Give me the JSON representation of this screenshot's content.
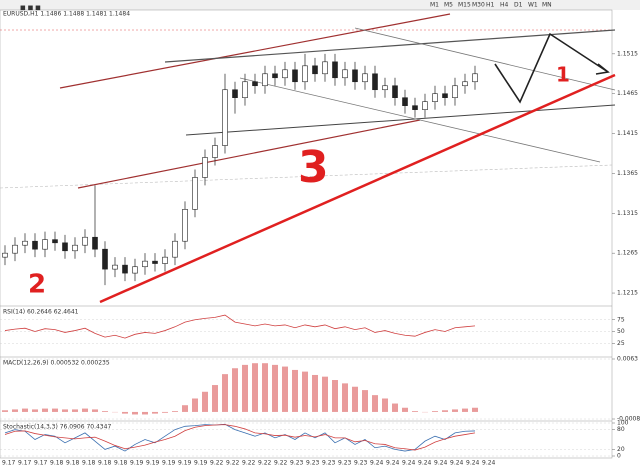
{
  "toolbar": [
    "M1",
    "M5",
    "M15",
    "M30",
    "H1",
    "H4",
    "D1",
    "W1",
    "MN"
  ],
  "annotations": [
    "1",
    "2",
    "3"
  ],
  "time_axis": [
    "9.17",
    "9.17",
    "9.17",
    "9.18",
    "9.18",
    "9.18",
    "9.18",
    "9.18",
    "9.19",
    "9.19",
    "9.19",
    "9.19",
    "9.19",
    "9.22",
    "9.22",
    "9.22",
    "9.22",
    "9.22",
    "9.23",
    "9.23",
    "9.23",
    "9.23",
    "9.23",
    "9.24",
    "9.24",
    "9.24",
    "9.24",
    "9.24",
    "9.24",
    "9.24",
    "9.24"
  ],
  "chart_data": [
    {
      "type": "candlestick",
      "title": "EURUSD,H1 1.1486 1.1488 1.1481 1.1484",
      "color": "#222222",
      "open": [
        1.126,
        1.1265,
        1.1275,
        1.128,
        1.127,
        1.1282,
        1.1278,
        1.1268,
        1.1275,
        1.1285,
        1.127,
        1.1245,
        1.125,
        1.124,
        1.1248,
        1.1255,
        1.1252,
        1.126,
        1.128,
        1.132,
        1.136,
        1.1385,
        1.14,
        1.147,
        1.146,
        1.148,
        1.1475,
        1.149,
        1.1485,
        1.1495,
        1.148,
        1.15,
        1.149,
        1.1505,
        1.1485,
        1.1495,
        1.148,
        1.149,
        1.147,
        1.1475,
        1.146,
        1.145,
        1.1445,
        1.1455,
        1.1465,
        1.146,
        1.1475,
        1.148
      ],
      "high": [
        1.1275,
        1.1285,
        1.129,
        1.129,
        1.1292,
        1.1292,
        1.1288,
        1.1285,
        1.1295,
        1.135,
        1.128,
        1.126,
        1.126,
        1.1258,
        1.1265,
        1.1265,
        1.127,
        1.129,
        1.133,
        1.137,
        1.1395,
        1.141,
        1.149,
        1.148,
        1.149,
        1.149,
        1.15,
        1.15,
        1.1505,
        1.1505,
        1.1515,
        1.151,
        1.1515,
        1.1515,
        1.1505,
        1.1505,
        1.15,
        1.15,
        1.1485,
        1.1485,
        1.147,
        1.146,
        1.1465,
        1.1475,
        1.1475,
        1.1485,
        1.149,
        1.15
      ],
      "low": [
        1.125,
        1.1255,
        1.1265,
        1.126,
        1.126,
        1.1268,
        1.1258,
        1.1258,
        1.1265,
        1.126,
        1.1225,
        1.1235,
        1.123,
        1.123,
        1.1238,
        1.1242,
        1.1242,
        1.125,
        1.127,
        1.131,
        1.135,
        1.1375,
        1.139,
        1.144,
        1.145,
        1.1465,
        1.1465,
        1.1475,
        1.1475,
        1.147,
        1.147,
        1.148,
        1.148,
        1.1475,
        1.1475,
        1.147,
        1.147,
        1.146,
        1.146,
        1.145,
        1.144,
        1.1435,
        1.1435,
        1.1445,
        1.145,
        1.145,
        1.1465,
        1.147
      ],
      "close": [
        1.1265,
        1.1275,
        1.128,
        1.127,
        1.1282,
        1.1278,
        1.1268,
        1.1275,
        1.1285,
        1.127,
        1.1245,
        1.125,
        1.124,
        1.1248,
        1.1255,
        1.1252,
        1.126,
        1.128,
        1.132,
        1.136,
        1.1385,
        1.14,
        1.147,
        1.146,
        1.148,
        1.1475,
        1.149,
        1.1485,
        1.1495,
        1.148,
        1.15,
        1.149,
        1.1505,
        1.1485,
        1.1495,
        1.148,
        1.149,
        1.147,
        1.1475,
        1.146,
        1.145,
        1.1445,
        1.1455,
        1.1465,
        1.146,
        1.1475,
        1.148,
        1.149
      ],
      "ylim": [
        1.12,
        1.157
      ],
      "yticks": [
        1.1215,
        1.1265,
        1.1315,
        1.1365,
        1.1415,
        1.1465,
        1.1515
      ],
      "grid": false
    },
    {
      "type": "line",
      "title": "RSI(14) 60.2646 62.4641",
      "color": "#d04040",
      "values": [
        52,
        55,
        57,
        50,
        56,
        54,
        48,
        52,
        57,
        46,
        38,
        42,
        36,
        44,
        48,
        46,
        52,
        60,
        70,
        75,
        78,
        80,
        85,
        70,
        66,
        62,
        66,
        62,
        64,
        58,
        64,
        60,
        64,
        56,
        60,
        54,
        58,
        48,
        52,
        46,
        42,
        40,
        48,
        54,
        50,
        58,
        60,
        62
      ],
      "ylim": [
        0,
        100
      ],
      "yticks": [
        25,
        50,
        75
      ]
    },
    {
      "type": "bar",
      "title": "MACD(12,26,9) 0.000532 0.000235",
      "color": "#e07070",
      "values": [
        0.0002,
        0.0003,
        0.0004,
        0.0003,
        0.0004,
        0.0004,
        0.0003,
        0.0003,
        0.0004,
        0.0003,
        0.0001,
        0,
        -0.0002,
        -0.0003,
        -0.0003,
        -0.0002,
        -0.0001,
        0.0001,
        0.0008,
        0.0016,
        0.0024,
        0.0032,
        0.0045,
        0.0052,
        0.0056,
        0.0058,
        0.0058,
        0.0056,
        0.0054,
        0.005,
        0.0048,
        0.0044,
        0.0042,
        0.0038,
        0.0034,
        0.003,
        0.0026,
        0.002,
        0.0016,
        0.001,
        0.0005,
        0.0001,
        0,
        0.0001,
        0.0002,
        0.0003,
        0.0004,
        0.0005
      ],
      "ylim": [
        -0.00084,
        0.0063
      ],
      "yticks": [
        -0.00084,
        0.0063
      ]
    },
    {
      "type": "line",
      "title": "Stochastic(14,3,3) 76.0906 70.4347",
      "series": [
        {
          "color": "#3a6fb0",
          "values": [
            70,
            80,
            75,
            50,
            65,
            60,
            40,
            55,
            70,
            45,
            20,
            30,
            15,
            35,
            50,
            40,
            60,
            80,
            90,
            92,
            95,
            94,
            96,
            80,
            70,
            60,
            70,
            55,
            65,
            50,
            70,
            55,
            70,
            40,
            55,
            35,
            50,
            25,
            30,
            20,
            15,
            20,
            45,
            60,
            50,
            70,
            75,
            76
          ]
        },
        {
          "color": "#d04040",
          "values": [
            65,
            75,
            76,
            68,
            63,
            58,
            55,
            52,
            55,
            57,
            45,
            32,
            22,
            27,
            33,
            42,
            50,
            60,
            77,
            87,
            92,
            94,
            95,
            90,
            82,
            70,
            67,
            62,
            63,
            57,
            62,
            58,
            65,
            55,
            55,
            43,
            47,
            37,
            35,
            25,
            22,
            18,
            27,
            42,
            52,
            60,
            65,
            70
          ]
        }
      ],
      "ylim": [
        0,
        100
      ],
      "yticks": [
        0,
        20,
        80,
        100
      ]
    }
  ]
}
